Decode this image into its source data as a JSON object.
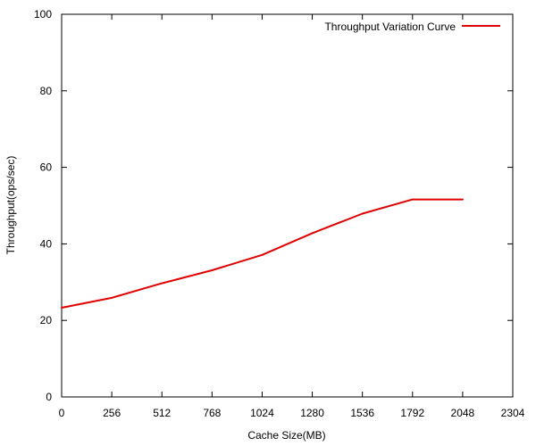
{
  "chart_data": {
    "type": "line",
    "xlabel": "Cache Size(MB)",
    "ylabel": "Throughput(ops/sec)",
    "xlim": [
      0,
      2304
    ],
    "ylim": [
      0,
      100
    ],
    "xticks": [
      0,
      256,
      512,
      768,
      1024,
      1280,
      1536,
      1792,
      2048,
      2304
    ],
    "yticks": [
      0,
      20,
      40,
      60,
      80,
      100
    ],
    "grid": false,
    "legend_position": "top-right",
    "series": [
      {
        "name": "Throughput Variation Curve",
        "color": "#e00000",
        "x": [
          0,
          256,
          512,
          768,
          1024,
          1280,
          1536,
          1792,
          2048
        ],
        "y": [
          23.3,
          25.9,
          29.7,
          33.1,
          37.1,
          42.8,
          47.9,
          51.6,
          51.6
        ]
      }
    ]
  }
}
